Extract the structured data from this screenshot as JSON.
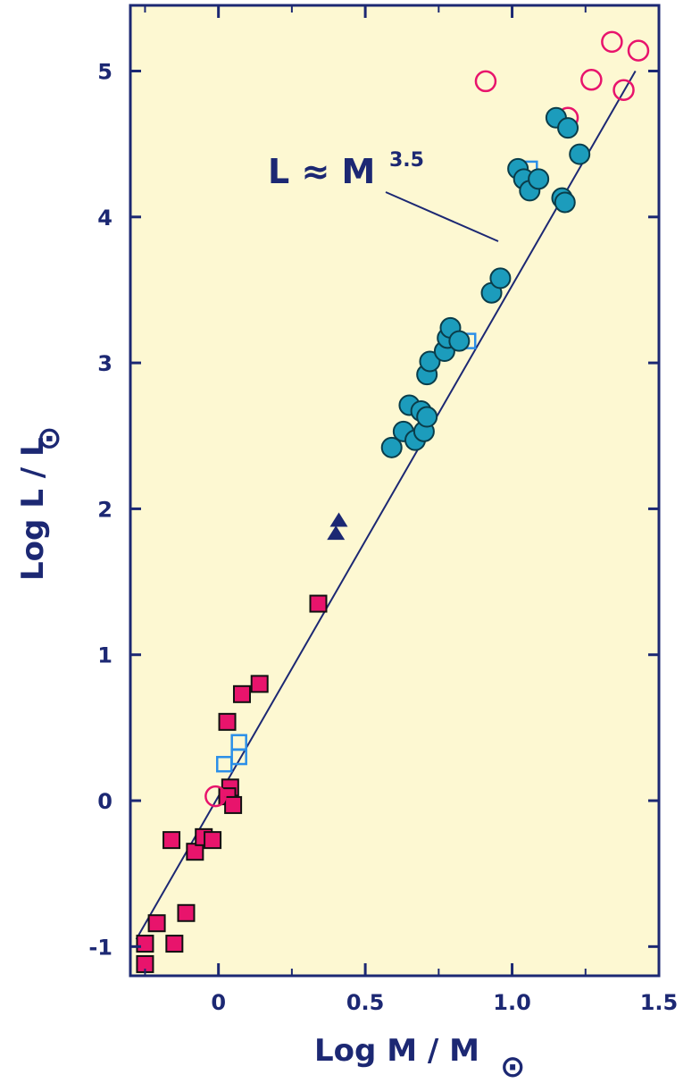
{
  "chart_data": {
    "type": "scatter",
    "title": "",
    "xlabel": "Log M / M",
    "xlabel_sub_symbol": "⊙",
    "ylabel": "Log L / L",
    "ylabel_sub_symbol": "⊙",
    "xlim": [
      -0.3,
      1.5
    ],
    "ylim": [
      -1.2,
      5.45
    ],
    "xticks": [
      0,
      0.5,
      1.0,
      1.5
    ],
    "xtick_labels": [
      "0",
      "0.5",
      "1.0",
      "1.5"
    ],
    "xticks_minor": [
      -0.25,
      0.25,
      0.75,
      1.25
    ],
    "yticks": [
      -1,
      0,
      1,
      2,
      3,
      4,
      5
    ],
    "ytick_labels": [
      "-1",
      "0",
      "1",
      "2",
      "3",
      "4",
      "5"
    ],
    "grid": false,
    "background": "#fdf8d2",
    "colors": {
      "axis": "#1c2873",
      "magenta": "#e8146c",
      "cyan": "#1c9cbc",
      "blue_open": "#2b8fe8",
      "dark_triangle": "#1c2873"
    },
    "fit_line": {
      "label_main": "L ≈ M",
      "label_exp": "3.5",
      "slope": 3.5,
      "intercept": 0.03,
      "x_range": [
        -0.28,
        1.42
      ]
    },
    "series": [
      {
        "marker": "filled-square",
        "color": "#e8146c",
        "points": [
          [
            -0.25,
            -0.98
          ],
          [
            -0.25,
            -1.12
          ],
          [
            -0.21,
            -0.84
          ],
          [
            -0.15,
            -0.98
          ],
          [
            -0.11,
            -0.77
          ],
          [
            -0.16,
            -0.27
          ],
          [
            -0.08,
            -0.35
          ],
          [
            -0.05,
            -0.25
          ],
          [
            -0.02,
            -0.27
          ],
          [
            0.04,
            0.09
          ],
          [
            0.03,
            0.03
          ],
          [
            0.05,
            -0.03
          ],
          [
            0.03,
            0.54
          ],
          [
            0.08,
            0.73
          ],
          [
            0.14,
            0.8
          ],
          [
            0.34,
            1.35
          ]
        ]
      },
      {
        "marker": "open-square",
        "color": "#2b8fe8",
        "points": [
          [
            0.02,
            0.25
          ],
          [
            0.07,
            0.3
          ],
          [
            0.07,
            0.4
          ],
          [
            0.85,
            3.15
          ],
          [
            1.06,
            4.33
          ]
        ]
      },
      {
        "marker": "open-circle",
        "color": "#e8146c",
        "points": [
          [
            -0.01,
            0.03
          ],
          [
            0.91,
            4.93
          ],
          [
            1.19,
            4.68
          ],
          [
            1.27,
            4.94
          ],
          [
            1.34,
            5.2
          ],
          [
            1.38,
            4.87
          ],
          [
            1.43,
            5.14
          ]
        ]
      },
      {
        "marker": "filled-triangle",
        "color": "#1c2873",
        "points": [
          [
            0.41,
            1.92
          ],
          [
            0.4,
            1.83
          ]
        ]
      },
      {
        "marker": "filled-circle",
        "color": "#1c9cbc",
        "points": [
          [
            0.59,
            2.42
          ],
          [
            0.63,
            2.53
          ],
          [
            0.65,
            2.71
          ],
          [
            0.67,
            2.47
          ],
          [
            0.69,
            2.67
          ],
          [
            0.7,
            2.53
          ],
          [
            0.71,
            2.63
          ],
          [
            0.71,
            2.92
          ],
          [
            0.72,
            3.01
          ],
          [
            0.77,
            3.08
          ],
          [
            0.78,
            3.17
          ],
          [
            0.79,
            3.24
          ],
          [
            0.82,
            3.15
          ],
          [
            0.93,
            3.48
          ],
          [
            0.96,
            3.58
          ],
          [
            1.02,
            4.33
          ],
          [
            1.04,
            4.26
          ],
          [
            1.06,
            4.18
          ],
          [
            1.09,
            4.26
          ],
          [
            1.15,
            4.68
          ],
          [
            1.17,
            4.13
          ],
          [
            1.18,
            4.1
          ],
          [
            1.19,
            4.61
          ],
          [
            1.23,
            4.43
          ]
        ]
      }
    ]
  }
}
